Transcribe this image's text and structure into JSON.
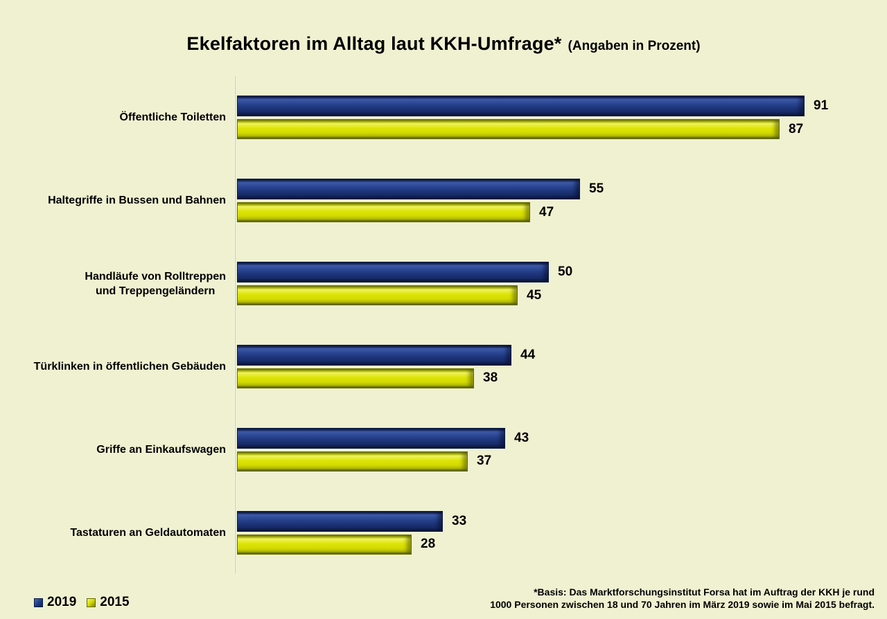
{
  "title": {
    "main": "Ekelfaktoren im Alltag laut KKH-Umfrage*",
    "suffix": "(Angaben in Prozent)"
  },
  "footnote": {
    "line1": "*Basis: Das Marktforschungsinstitut Forsa hat im Auftrag der KKH je rund",
    "line2": "1000 Personen zwischen 18 und 70 Jahren im März 2019 sowie im Mai 2015 befragt."
  },
  "colors": {
    "background": "#eff1d1",
    "bar_2019": "#1d3478",
    "bar_2015": "#d8df05",
    "axis_line": "#c9cdb4",
    "text": "#000000"
  },
  "chart_data": {
    "type": "bar",
    "orientation": "horizontal",
    "title": "Ekelfaktoren im Alltag laut KKH-Umfrage* (Angaben in Prozent)",
    "unit": "Prozent",
    "xlim": [
      0,
      104
    ],
    "grid": false,
    "legend_position": "bottom-left",
    "value_labels": true,
    "categories": [
      "Öffentliche Toiletten",
      "Haltegriffe in Bussen und Bahnen",
      "Handläufe von Rolltreppen\nund Treppengeländern",
      "Türklinken in öffentlichen Gebäuden",
      "Griffe an Einkaufswagen",
      "Tastaturen an Geldautomaten"
    ],
    "series": [
      {
        "name": "2019",
        "color": "#1d3478",
        "values": [
          91,
          55,
          50,
          44,
          43,
          33
        ]
      },
      {
        "name": "2015",
        "color": "#d8df05",
        "values": [
          87,
          47,
          45,
          38,
          37,
          28
        ]
      }
    ]
  }
}
